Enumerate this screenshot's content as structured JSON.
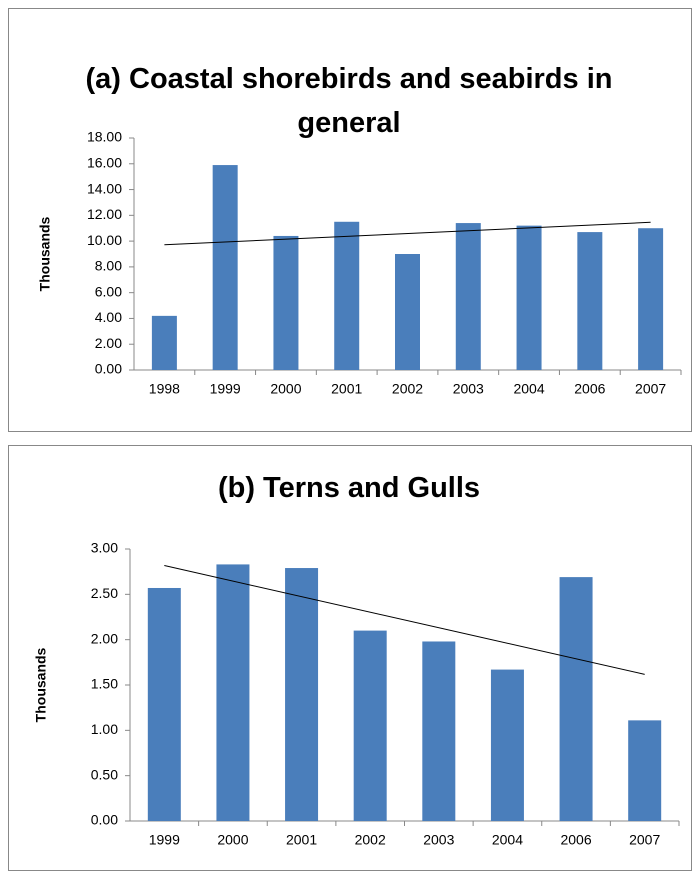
{
  "chart_data": [
    {
      "type": "bar",
      "title": "(a) Coastal shorebirds and seabirds in general",
      "y_label": "Thousands",
      "categories": [
        "1998",
        "1999",
        "2000",
        "2001",
        "2002",
        "2003",
        "2004",
        "2006",
        "2007"
      ],
      "values": [
        4.2,
        15.9,
        10.4,
        11.5,
        9.0,
        11.4,
        11.2,
        10.7,
        11.0
      ],
      "color": "#4a7ebb",
      "trendline": "linear",
      "ylim": [
        0,
        18
      ],
      "yticks": [
        {
          "value": 0,
          "label": "0.00"
        },
        {
          "value": 2,
          "label": "2.00"
        },
        {
          "value": 4,
          "label": "4.00"
        },
        {
          "value": 6,
          "label": "6.00"
        },
        {
          "value": 8,
          "label": "8.00"
        },
        {
          "value": 10,
          "label": "10.00"
        },
        {
          "value": 12,
          "label": "12.00"
        },
        {
          "value": 14,
          "label": "14.00"
        },
        {
          "value": 16,
          "label": "16.00"
        },
        {
          "value": 18,
          "label": "18.00"
        }
      ]
    },
    {
      "type": "bar",
      "title": "(b) Terns and Gulls",
      "y_label": "Thousands",
      "categories": [
        "1999",
        "2000",
        "2001",
        "2002",
        "2003",
        "2004",
        "2006",
        "2007"
      ],
      "values": [
        2.57,
        2.83,
        2.79,
        2.1,
        1.98,
        1.67,
        2.69,
        1.11
      ],
      "color": "#4a7ebb",
      "trendline": "linear",
      "ylim": [
        0,
        3
      ],
      "yticks": [
        {
          "value": 0,
          "label": "0.00"
        },
        {
          "value": 0.5,
          "label": "0.50"
        },
        {
          "value": 1,
          "label": "1.00"
        },
        {
          "value": 1.5,
          "label": "1.50"
        },
        {
          "value": 2,
          "label": "2.00"
        },
        {
          "value": 2.5,
          "label": "2.50"
        },
        {
          "value": 3,
          "label": "3.00"
        }
      ]
    }
  ]
}
